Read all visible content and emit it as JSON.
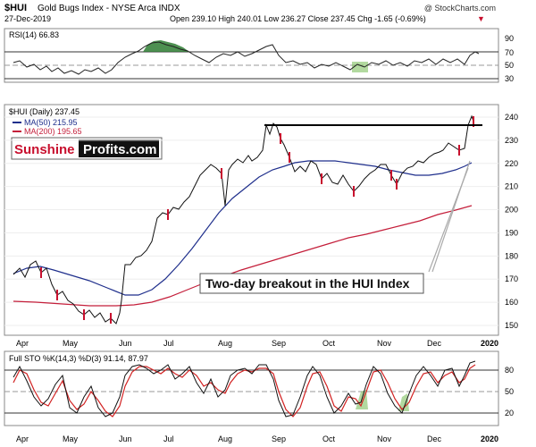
{
  "header": {
    "symbol": "$HUI",
    "name": "Gold Bugs Index - NYSE Arca INDX",
    "date": "27-Dec-2019",
    "ohlc": "Open 239.10  High 240.01  Low 236.27  Close 237.45  Chg -1.65 (-0.69%)",
    "watermark": "@ StockCharts.com",
    "down_arrow": "▼"
  },
  "colors": {
    "price_up": "#111111",
    "price_down": "#c8102e",
    "ma50": "#1f2f8c",
    "ma200": "#c41e3a",
    "rsi_fill": "#2e7d32",
    "highlight": "#7fbf5f",
    "stoch_k": "#111111",
    "stoch_d": "#d22222",
    "annotation_line": "#aaaaaa"
  },
  "months": [
    "Apr",
    "May",
    "Jun",
    "Jul",
    "Aug",
    "Sep",
    "Oct",
    "Nov",
    "Dec",
    "2020"
  ],
  "rsi": {
    "label": "RSI(14) 66.83",
    "ticks": [
      "90",
      "70",
      "50",
      "30"
    ],
    "current": 66.83
  },
  "price": {
    "label": "$HUI (Daily) 237.45",
    "ma50_label": "MA(50) 215.95",
    "ma200_label": "MA(200) 195.65",
    "ticks": [
      "240",
      "230",
      "220",
      "210",
      "200",
      "190",
      "180",
      "170",
      "160",
      "150"
    ],
    "close": 237.45,
    "resistance": 235
  },
  "brand": {
    "part1": "Sunshine",
    "part2": "Profits.com"
  },
  "annotation": {
    "text": "Two-day breakout in the HUI Index"
  },
  "stoch": {
    "label": "Full STO %K(14,3) %D(3) 91.14, 87.97",
    "ticks": [
      "80",
      "50",
      "20"
    ],
    "k": 91.14,
    "d": 87.97
  },
  "chart_data": {
    "type": "line",
    "title": "$HUI Gold Bugs Index - NYSE Arca INDX",
    "x": [
      "Apr",
      "May",
      "Jun",
      "Jul",
      "Aug",
      "Sep",
      "Oct",
      "Nov",
      "Dec",
      "2020"
    ],
    "series": [
      {
        "name": "$HUI (Daily)",
        "values": [
          168,
          150,
          162,
          185,
          212,
          235,
          212,
          206,
          222,
          237
        ]
      },
      {
        "name": "MA(50)",
        "values": [
          170,
          164,
          160,
          168,
          190,
          212,
          214,
          208,
          210,
          216
        ]
      },
      {
        "name": "MA(200)",
        "values": [
          160,
          158,
          158,
          162,
          172,
          180,
          185,
          188,
          192,
          196
        ]
      }
    ],
    "ylim": [
      145,
      243
    ],
    "grid": true,
    "resistance_line": 235
  }
}
